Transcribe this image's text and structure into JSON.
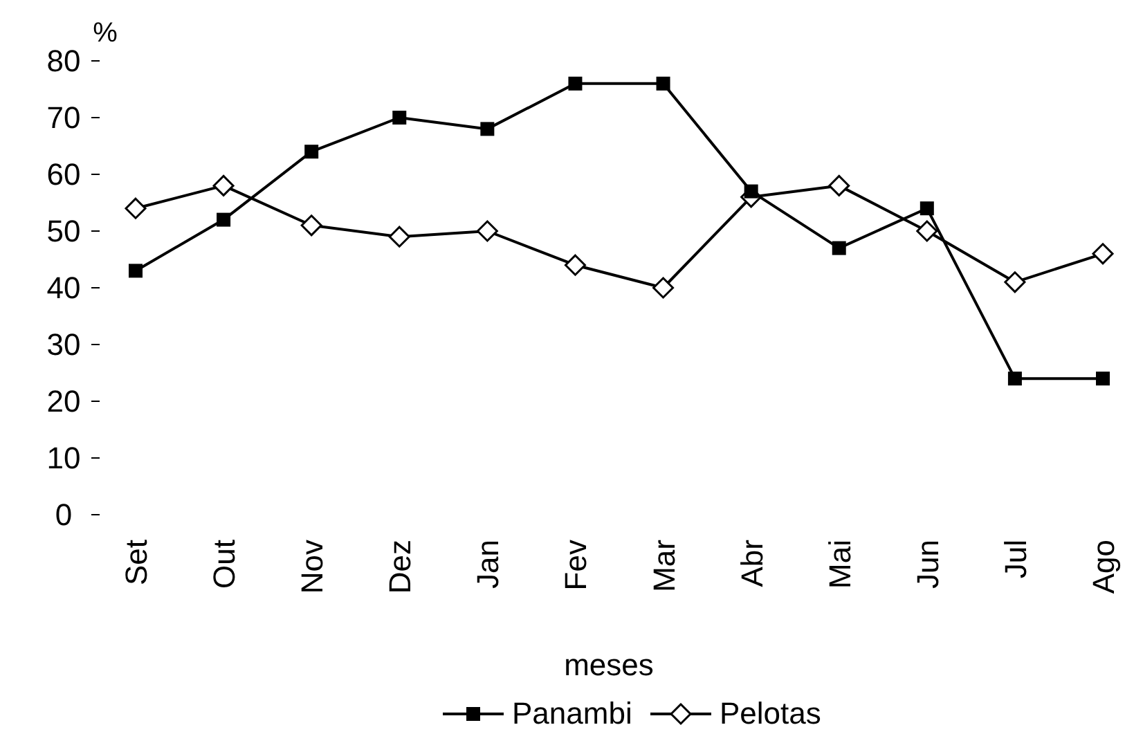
{
  "chart_data": {
    "type": "line",
    "ylabel": "%",
    "xlabel": "meses",
    "categories": [
      "Set",
      "Out",
      "Nov",
      "Dez",
      "Jan",
      "Fev",
      "Mar",
      "Abr",
      "Mai",
      "Jun",
      "Jul",
      "Ago"
    ],
    "series": [
      {
        "name": "Panambi",
        "color": "#000000",
        "marker": "square",
        "values": [
          43,
          52,
          64,
          70,
          68,
          76,
          76,
          57,
          47,
          54,
          24,
          24
        ]
      },
      {
        "name": "Pelotas",
        "color": "#000000",
        "marker": "diamond",
        "values": [
          54,
          58,
          51,
          49,
          50,
          44,
          40,
          56,
          58,
          50,
          41,
          46
        ]
      }
    ],
    "ylim": [
      0,
      80
    ],
    "yticks": [
      0,
      10,
      20,
      30,
      40,
      50,
      60,
      70,
      80
    ],
    "legend": "bottom",
    "grid": false,
    "line_style": "solid"
  }
}
